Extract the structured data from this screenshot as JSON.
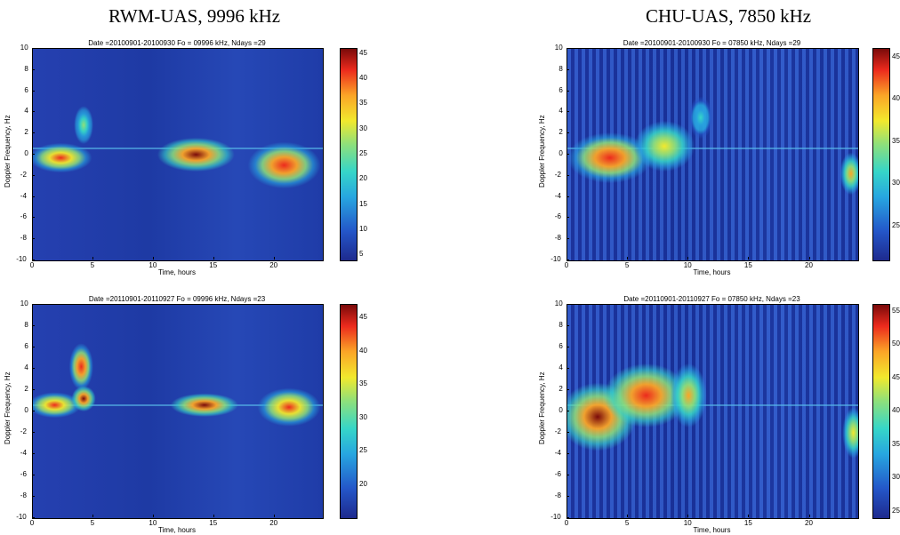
{
  "headings": {
    "left": "RWM-UAS, 9996 kHz",
    "right": "CHU-UAS, 7850 kHz"
  },
  "colors": {
    "background": "#1e3da8",
    "low": "#1e2a8e",
    "mid": "#36d6c8",
    "high": "#f2e92d",
    "peak": "#7a0a0a"
  },
  "chart_data": [
    {
      "type": "heatmap",
      "title": "Date =20100901-20100930   Fo = 09996 kHz, Ndays =29",
      "xlabel": "Time, hours",
      "ylabel": "Doppler Frequency, Hz",
      "xlim": [
        0,
        24
      ],
      "ylim": [
        -10,
        10
      ],
      "xticks": [
        "0",
        "5",
        "10",
        "15",
        "20"
      ],
      "yticks": [
        "10",
        "8",
        "6",
        "4",
        "2",
        "0",
        "-2",
        "-4",
        "-6",
        "-8",
        "-10"
      ],
      "colorbar_ticks": [
        "45",
        "40",
        "35",
        "30",
        "25",
        "20",
        "15",
        "10",
        "5"
      ],
      "colorbar_range": [
        4,
        46
      ],
      "features": [
        {
          "t": 2.3,
          "f": -0.3,
          "spread_h": 2.6,
          "spread_f": 1.4,
          "level": 38
        },
        {
          "t": 4.2,
          "f": 2.8,
          "spread_h": 0.8,
          "spread_f": 1.8,
          "level": 24
        },
        {
          "t": 13.5,
          "f": 0.0,
          "spread_h": 3.2,
          "spread_f": 1.6,
          "level": 44
        },
        {
          "t": 20.8,
          "f": -1.0,
          "spread_h": 3.0,
          "spread_f": 2.2,
          "level": 40
        }
      ],
      "stripes": false
    },
    {
      "type": "heatmap",
      "title": "Date =20100901-20100930   Fo = 07850 kHz, Ndays =29",
      "xlabel": "Time, hours",
      "ylabel": "Doppler Frequency, Hz",
      "xlim": [
        0,
        24
      ],
      "ylim": [
        -10,
        10
      ],
      "xticks": [
        "0",
        "5",
        "10",
        "15",
        "20"
      ],
      "yticks": [
        "10",
        "8",
        "6",
        "4",
        "2",
        "0",
        "-2",
        "-4",
        "-6",
        "-8",
        "-10"
      ],
      "colorbar_ticks": [
        "45",
        "40",
        "35",
        "30",
        "25"
      ],
      "colorbar_range": [
        21,
        46
      ],
      "features": [
        {
          "t": 3.5,
          "f": -0.3,
          "spread_h": 3.5,
          "spread_f": 2.4,
          "level": 42
        },
        {
          "t": 8.0,
          "f": 0.8,
          "spread_h": 2.5,
          "spread_f": 2.4,
          "level": 36
        },
        {
          "t": 11.0,
          "f": 3.5,
          "spread_h": 1.0,
          "spread_f": 2.0,
          "level": 30
        },
        {
          "t": 23.4,
          "f": -1.8,
          "spread_h": 0.9,
          "spread_f": 2.0,
          "level": 38
        }
      ],
      "stripes": true
    },
    {
      "type": "heatmap",
      "title": "Date =20110901-20110927   Fo = 09996 kHz, Ndays =23",
      "xlabel": "Time, hours",
      "ylabel": "Doppler Frequency, Hz",
      "xlim": [
        0,
        24
      ],
      "ylim": [
        -10,
        10
      ],
      "xticks": [
        "0",
        "5",
        "10",
        "15",
        "20"
      ],
      "yticks": [
        "10",
        "8",
        "6",
        "4",
        "2",
        "0",
        "-2",
        "-4",
        "-6",
        "-8",
        "-10"
      ],
      "colorbar_ticks": [
        "45",
        "40",
        "35",
        "30",
        "25",
        "20"
      ],
      "colorbar_range": [
        15,
        47
      ],
      "features": [
        {
          "t": 1.8,
          "f": 0.6,
          "spread_h": 2.2,
          "spread_f": 1.2,
          "level": 40
        },
        {
          "t": 4.0,
          "f": 4.2,
          "spread_h": 1.0,
          "spread_f": 2.2,
          "level": 42
        },
        {
          "t": 4.2,
          "f": 1.2,
          "spread_h": 1.0,
          "spread_f": 1.2,
          "level": 44
        },
        {
          "t": 14.2,
          "f": 0.6,
          "spread_h": 2.8,
          "spread_f": 1.1,
          "level": 44
        },
        {
          "t": 21.2,
          "f": 0.4,
          "spread_h": 2.6,
          "spread_f": 1.8,
          "level": 41
        }
      ],
      "stripes": false
    },
    {
      "type": "heatmap",
      "title": "Date =20110901-20110927   Fo = 07850 kHz, Ndays =23",
      "xlabel": "Time, hours",
      "ylabel": "Doppler Frequency, Hz",
      "xlim": [
        0,
        24
      ],
      "ylim": [
        -10,
        10
      ],
      "xticks": [
        "0",
        "5",
        "10",
        "15",
        "20"
      ],
      "yticks": [
        "10",
        "8",
        "6",
        "4",
        "2",
        "0",
        "-2",
        "-4",
        "-6",
        "-8",
        "-10"
      ],
      "colorbar_ticks": [
        "55",
        "50",
        "45",
        "40",
        "35",
        "30",
        "25"
      ],
      "colorbar_range": [
        24,
        56
      ],
      "features": [
        {
          "t": 2.5,
          "f": -0.5,
          "spread_h": 3.2,
          "spread_f": 3.2,
          "level": 54
        },
        {
          "t": 6.5,
          "f": 1.5,
          "spread_h": 3.5,
          "spread_f": 3.0,
          "level": 52
        },
        {
          "t": 10.0,
          "f": 1.5,
          "spread_h": 1.5,
          "spread_f": 3.0,
          "level": 46
        },
        {
          "t": 23.6,
          "f": -2.0,
          "spread_h": 0.9,
          "spread_f": 2.4,
          "level": 44
        }
      ],
      "stripes": true
    }
  ]
}
